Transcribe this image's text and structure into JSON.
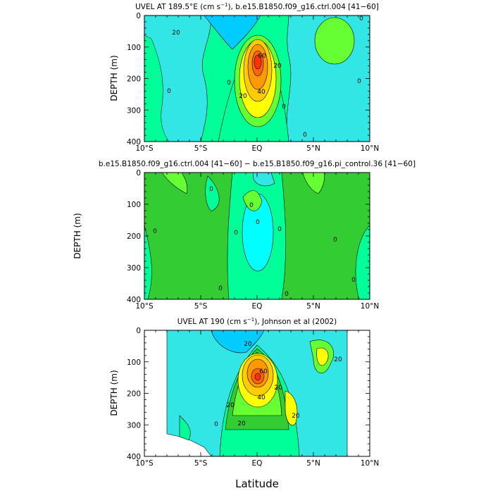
{
  "figure": {
    "xlabel": "Latitude",
    "x_tick_labels": [
      "10°S",
      "5°S",
      "EQ",
      "5°N",
      "10°N"
    ]
  },
  "colors": {
    "ramp": [
      "#00ccff",
      "#33e6e6",
      "#00ff99",
      "#33cc33",
      "#66ff33",
      "#ffff00",
      "#ffcc00",
      "#ff9900",
      "#ff6600",
      "#ff3300"
    ],
    "thresholds": [
      -30,
      -10,
      0,
      10,
      20,
      40,
      55,
      70,
      85
    ]
  },
  "chart_data": [
    {
      "type": "contour",
      "title_prefix": "UVEL AT 189.5°E (cm s",
      "title_sup": "−1",
      "title_suffix": "), b.e15.B1850.f09_g16.ctrl.004 [41−60]",
      "ylabel": "DEPTH (m)",
      "xlim": [
        -10,
        10
      ],
      "ylim": [
        400,
        0
      ],
      "y_ticks": [
        0,
        100,
        200,
        300,
        400
      ],
      "contour_labels": [
        "20",
        "60",
        "20",
        "40",
        "20",
        "0",
        "0",
        "0",
        "0",
        "0",
        "0"
      ],
      "core": {
        "lat": 0.0,
        "depth": 150,
        "max_value": 90
      },
      "field": "upper-ocean zonal velocity (cm/s), eastward undercurrent core at the equator near 150 m"
    },
    {
      "type": "contour",
      "title": "b.e15.B1850.f09_g16.ctrl.004 [41−60] − b.e15.B1850.f09_g16.pi_control.36 [41−60]",
      "ylabel": "DEPTH (m)",
      "xlim": [
        -10,
        10
      ],
      "ylim": [
        400,
        0
      ],
      "y_ticks": [
        0,
        100,
        200,
        300,
        400
      ],
      "contour_labels": [
        "0",
        "0",
        "0",
        "0",
        "0",
        "0",
        "0",
        "0",
        "0",
        "0"
      ],
      "field": "difference field, weakly positive away from the equator and weakly negative in the equatorial column"
    },
    {
      "type": "contour",
      "title_prefix": "UVEL AT 190 (cm s",
      "title_sup": "−1",
      "title_suffix": "), Johnson et al (2002)",
      "ylabel": "DEPTH (m)",
      "xlim": [
        -10,
        10
      ],
      "ylim": [
        400,
        0
      ],
      "y_ticks": [
        0,
        100,
        200,
        300,
        400
      ],
      "contour_labels": [
        "20",
        "20",
        "40",
        "60",
        "20",
        "20",
        "20",
        "20",
        "0"
      ],
      "core": {
        "lat": 0.0,
        "depth": 150,
        "max_value": 100
      },
      "data_lat_range": [
        -8,
        8
      ],
      "field": "observed zonal velocity (cm/s), equatorial undercurrent core near 150 m"
    }
  ]
}
